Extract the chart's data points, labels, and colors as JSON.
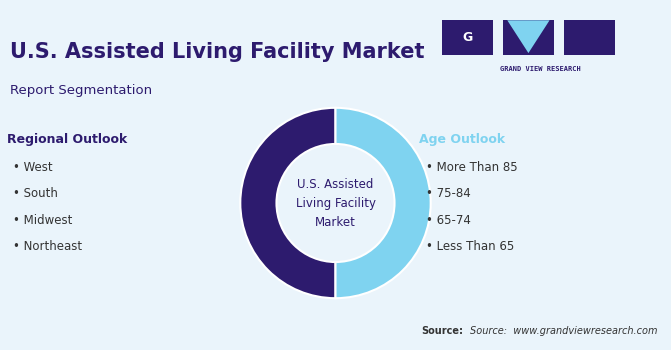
{
  "title": "U.S. Assisted Living Facility Market",
  "subtitle": "Report Segmentation",
  "background_color": "#eaf4fb",
  "title_color": "#2d1b6e",
  "subtitle_color": "#2d1b6e",
  "donut_colors": [
    "#2d1b6e",
    "#7fd3f0"
  ],
  "donut_values": [
    50,
    50
  ],
  "center_text": "U.S. Assisted\nLiving Facility\nMarket",
  "center_text_color": "#2d1b6e",
  "left_heading": "Regional Outlook",
  "left_heading_color": "#2d1b6e",
  "left_items": [
    "West",
    "South",
    "Midwest",
    "Northeast"
  ],
  "left_items_color": "#333333",
  "right_heading": "Age Outlook",
  "right_heading_color": "#7fd3f0",
  "right_items": [
    "More Than 85",
    "75-84",
    "65-74",
    "Less Than 65"
  ],
  "right_items_color": "#333333",
  "source_text": "Source:  www.grandviewresearch.com",
  "source_bold": "Source:",
  "top_bar_color": "#7fd3f0",
  "top_bar_height": 0.012,
  "logo_dark_color": "#2d1b6e",
  "logo_light_color": "#7fd3f0"
}
